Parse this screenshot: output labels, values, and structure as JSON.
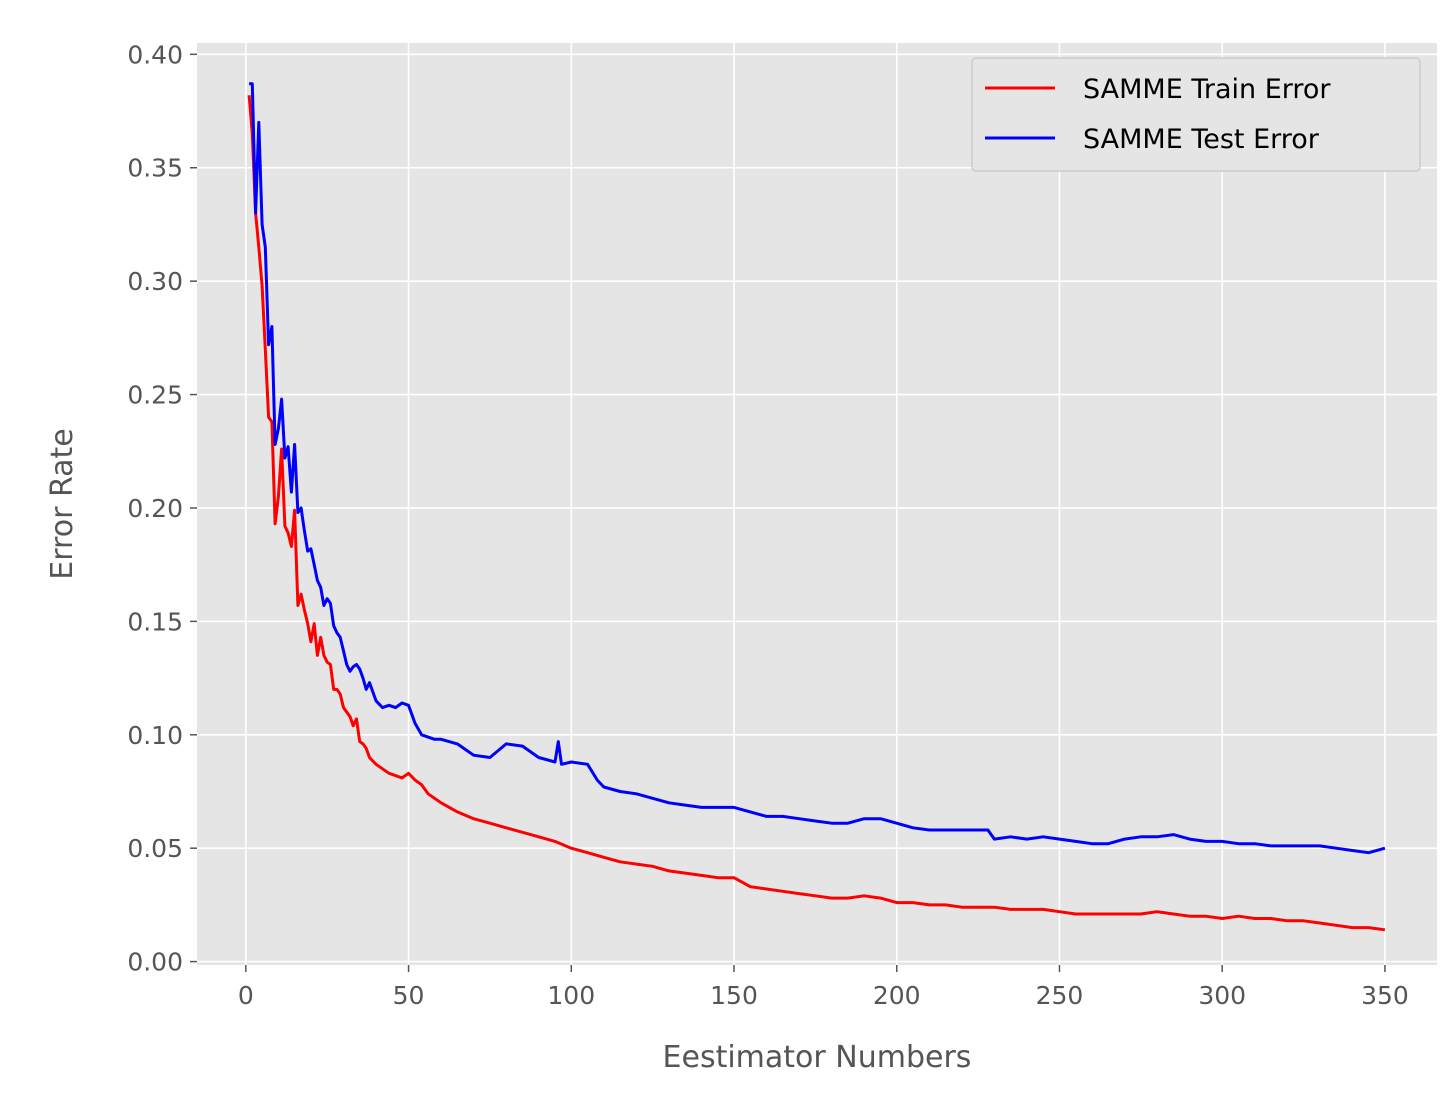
{
  "chart_data": {
    "type": "line",
    "xlabel": "Eestimator Numbers",
    "ylabel": "Error Rate",
    "xlim": [
      -15,
      366
    ],
    "ylim": [
      -0.0015,
      0.405
    ],
    "xticks": [
      0,
      50,
      100,
      150,
      200,
      250,
      300,
      350
    ],
    "xtick_labels": [
      "0",
      "50",
      "100",
      "150",
      "200",
      "250",
      "300",
      "350"
    ],
    "yticks": [
      0.0,
      0.05,
      0.1,
      0.15,
      0.2,
      0.25,
      0.3,
      0.35,
      0.4
    ],
    "ytick_labels": [
      "0.00",
      "0.05",
      "0.10",
      "0.15",
      "0.20",
      "0.25",
      "0.30",
      "0.35",
      "0.40"
    ],
    "grid": true,
    "legend_position": "top-right",
    "colors": {
      "background": "#e5e5e5",
      "grid": "#ffffff",
      "train": "#ff0000",
      "test": "#0000ff"
    },
    "series": [
      {
        "name": "SAMME Train Error",
        "color": "#ff0000",
        "x": [
          1,
          2,
          3,
          4,
          5,
          6,
          7,
          8,
          9,
          10,
          11,
          12,
          13,
          14,
          15,
          16,
          17,
          18,
          19,
          20,
          21,
          22,
          23,
          24,
          25,
          26,
          27,
          28,
          29,
          30,
          31,
          32,
          33,
          34,
          35,
          36,
          37,
          38,
          40,
          42,
          44,
          46,
          48,
          50,
          52,
          54,
          56,
          58,
          60,
          65,
          70,
          75,
          80,
          85,
          90,
          95,
          100,
          105,
          110,
          115,
          120,
          125,
          130,
          135,
          140,
          145,
          150,
          155,
          160,
          165,
          170,
          175,
          180,
          185,
          190,
          195,
          200,
          205,
          210,
          215,
          220,
          225,
          230,
          235,
          240,
          245,
          250,
          255,
          260,
          265,
          270,
          275,
          280,
          285,
          290,
          295,
          300,
          305,
          310,
          315,
          320,
          325,
          330,
          335,
          340,
          345,
          350
        ],
        "y": [
          0.382,
          0.365,
          0.33,
          0.315,
          0.298,
          0.27,
          0.24,
          0.238,
          0.193,
          0.205,
          0.226,
          0.192,
          0.189,
          0.183,
          0.199,
          0.157,
          0.162,
          0.155,
          0.149,
          0.141,
          0.149,
          0.135,
          0.143,
          0.135,
          0.132,
          0.131,
          0.12,
          0.12,
          0.118,
          0.112,
          0.11,
          0.108,
          0.104,
          0.107,
          0.097,
          0.096,
          0.094,
          0.09,
          0.087,
          0.085,
          0.083,
          0.082,
          0.081,
          0.083,
          0.08,
          0.078,
          0.074,
          0.072,
          0.07,
          0.066,
          0.063,
          0.061,
          0.059,
          0.057,
          0.055,
          0.053,
          0.05,
          0.048,
          0.046,
          0.044,
          0.043,
          0.042,
          0.04,
          0.039,
          0.038,
          0.037,
          0.037,
          0.033,
          0.032,
          0.031,
          0.03,
          0.029,
          0.028,
          0.028,
          0.029,
          0.028,
          0.026,
          0.026,
          0.025,
          0.025,
          0.024,
          0.024,
          0.024,
          0.023,
          0.023,
          0.023,
          0.022,
          0.021,
          0.021,
          0.021,
          0.021,
          0.021,
          0.022,
          0.021,
          0.02,
          0.02,
          0.019,
          0.02,
          0.019,
          0.019,
          0.018,
          0.018,
          0.017,
          0.016,
          0.015,
          0.015,
          0.014
        ]
      },
      {
        "name": "SAMME Test Error",
        "color": "#0000ff",
        "x": [
          1,
          2,
          3,
          4,
          5,
          6,
          7,
          8,
          9,
          10,
          11,
          12,
          13,
          14,
          15,
          16,
          17,
          18,
          19,
          20,
          21,
          22,
          23,
          24,
          25,
          26,
          27,
          28,
          29,
          30,
          31,
          32,
          33,
          34,
          35,
          36,
          37,
          38,
          40,
          42,
          44,
          46,
          48,
          50,
          52,
          54,
          56,
          58,
          60,
          65,
          70,
          75,
          80,
          85,
          90,
          95,
          96,
          97,
          100,
          105,
          108,
          110,
          115,
          120,
          125,
          130,
          135,
          140,
          145,
          150,
          155,
          160,
          165,
          170,
          175,
          180,
          185,
          190,
          195,
          200,
          205,
          210,
          215,
          220,
          225,
          228,
          230,
          235,
          240,
          245,
          250,
          255,
          260,
          265,
          270,
          275,
          280,
          285,
          290,
          295,
          300,
          305,
          310,
          315,
          320,
          325,
          330,
          335,
          340,
          345,
          350
        ],
        "y": [
          0.387,
          0.387,
          0.33,
          0.37,
          0.325,
          0.315,
          0.272,
          0.28,
          0.228,
          0.235,
          0.248,
          0.222,
          0.227,
          0.207,
          0.228,
          0.198,
          0.2,
          0.19,
          0.181,
          0.182,
          0.175,
          0.168,
          0.165,
          0.157,
          0.16,
          0.158,
          0.148,
          0.145,
          0.143,
          0.137,
          0.131,
          0.128,
          0.13,
          0.131,
          0.129,
          0.125,
          0.12,
          0.123,
          0.115,
          0.112,
          0.113,
          0.112,
          0.114,
          0.113,
          0.105,
          0.1,
          0.099,
          0.098,
          0.098,
          0.096,
          0.091,
          0.09,
          0.096,
          0.095,
          0.09,
          0.088,
          0.097,
          0.087,
          0.088,
          0.087,
          0.08,
          0.077,
          0.075,
          0.074,
          0.072,
          0.07,
          0.069,
          0.068,
          0.068,
          0.068,
          0.066,
          0.064,
          0.064,
          0.063,
          0.062,
          0.061,
          0.061,
          0.063,
          0.063,
          0.061,
          0.059,
          0.058,
          0.058,
          0.058,
          0.058,
          0.058,
          0.054,
          0.055,
          0.054,
          0.055,
          0.054,
          0.053,
          0.052,
          0.052,
          0.054,
          0.055,
          0.055,
          0.056,
          0.054,
          0.053,
          0.053,
          0.052,
          0.052,
          0.051,
          0.051,
          0.051,
          0.051,
          0.05,
          0.049,
          0.048,
          0.05
        ]
      }
    ]
  }
}
